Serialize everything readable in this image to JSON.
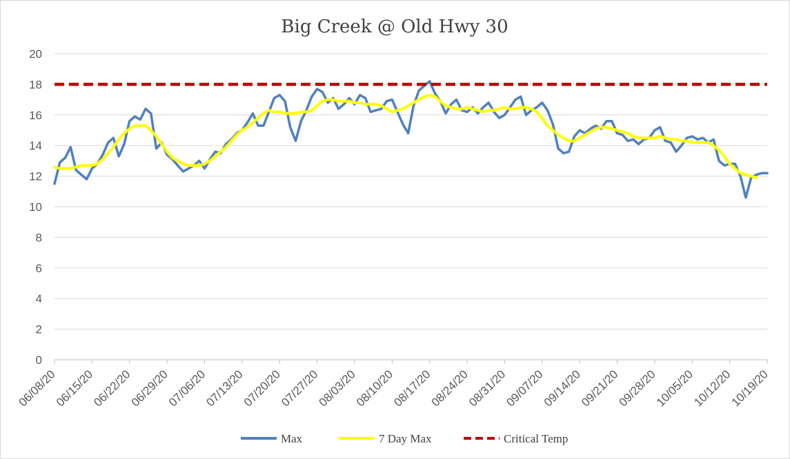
{
  "chart_data": {
    "type": "line",
    "title": "Big Creek @ Old Hwy 30",
    "ylim": [
      0,
      20
    ],
    "yticks": [
      0,
      2,
      4,
      6,
      8,
      10,
      12,
      14,
      16,
      18,
      20
    ],
    "x_start": "06/08/20",
    "x_tick_labels": [
      "06/08/20",
      "06/15/20",
      "06/22/20",
      "06/29/20",
      "07/06/20",
      "07/13/20",
      "07/20/20",
      "07/27/20",
      "08/03/20",
      "08/10/20",
      "08/17/20",
      "08/24/20",
      "08/31/20",
      "09/07/20",
      "09/14/20",
      "09/21/20",
      "09/28/20",
      "10/05/20",
      "10/12/20",
      "10/19/20"
    ],
    "grid": "horizontal",
    "legend_position": "bottom",
    "series": [
      {
        "name": "Max",
        "color": "#4f81bd",
        "style": "solid",
        "values": [
          11.5,
          12.9,
          13.2,
          13.9,
          12.4,
          12.1,
          11.8,
          12.5,
          12.8,
          13.4,
          14.2,
          14.5,
          13.3,
          14.1,
          15.6,
          15.9,
          15.7,
          16.4,
          16.1,
          13.8,
          14.2,
          13.4,
          13.1,
          12.7,
          12.3,
          12.5,
          12.7,
          13.0,
          12.5,
          13.1,
          13.6,
          13.5,
          14.1,
          14.4,
          14.8,
          15.0,
          15.5,
          16.1,
          15.3,
          15.3,
          16.2,
          17.1,
          17.3,
          16.9,
          15.2,
          14.3,
          15.6,
          16.3,
          17.2,
          17.7,
          17.5,
          16.8,
          17.1,
          16.4,
          16.7,
          17.1,
          16.7,
          17.3,
          17.1,
          16.2,
          16.3,
          16.4,
          16.9,
          17.0,
          16.2,
          15.4,
          14.8,
          16.6,
          17.6,
          17.9,
          18.2,
          17.4,
          16.9,
          16.1,
          16.7,
          17.0,
          16.3,
          16.2,
          16.5,
          16.1,
          16.5,
          16.8,
          16.2,
          15.8,
          16.0,
          16.5,
          17.0,
          17.2,
          16.0,
          16.3,
          16.5,
          16.8,
          16.3,
          15.4,
          13.8,
          13.5,
          13.6,
          14.6,
          15.0,
          14.8,
          15.1,
          15.3,
          15.1,
          15.6,
          15.6,
          14.8,
          14.7,
          14.3,
          14.4,
          14.1,
          14.4,
          14.5,
          15.0,
          15.2,
          14.3,
          14.2,
          13.6,
          14.0,
          14.5,
          14.6,
          14.4,
          14.5,
          14.2,
          14.4,
          13.0,
          12.7,
          12.8,
          12.8,
          12.0,
          10.6,
          11.9,
          12.1,
          12.2,
          12.2
        ]
      },
      {
        "name": "7 Day Max",
        "color": "#ffff00",
        "style": "solid",
        "values": [
          12.6,
          12.5,
          12.5,
          12.5,
          12.6,
          12.7,
          12.7,
          12.7,
          12.8,
          13.1,
          13.5,
          13.9,
          14.4,
          14.8,
          15.1,
          15.3,
          15.3,
          15.3,
          15.0,
          14.6,
          14.1,
          13.6,
          13.2,
          13.0,
          12.8,
          12.7,
          12.7,
          12.7,
          12.8,
          13.0,
          13.3,
          13.6,
          13.9,
          14.3,
          14.7,
          15.0,
          15.2,
          15.5,
          15.8,
          16.1,
          16.3,
          16.2,
          16.2,
          16.1,
          16.1,
          16.1,
          16.2,
          16.2,
          16.3,
          16.6,
          16.9,
          17.0,
          17.0,
          16.9,
          16.9,
          16.9,
          16.8,
          16.8,
          16.7,
          16.7,
          16.7,
          16.6,
          16.4,
          16.2,
          16.3,
          16.4,
          16.6,
          16.8,
          17.0,
          17.2,
          17.3,
          17.2,
          16.9,
          16.6,
          16.5,
          16.4,
          16.4,
          16.5,
          16.4,
          16.3,
          16.2,
          16.3,
          16.3,
          16.4,
          16.5,
          16.4,
          16.4,
          16.5,
          16.5,
          16.4,
          16.2,
          15.8,
          15.3,
          15.0,
          14.7,
          14.5,
          14.3,
          14.3,
          14.5,
          14.7,
          14.9,
          15.1,
          15.2,
          15.2,
          15.1,
          15.0,
          14.9,
          14.8,
          14.6,
          14.5,
          14.5,
          14.5,
          14.5,
          14.6,
          14.5,
          14.4,
          14.4,
          14.3,
          14.3,
          14.2,
          14.2,
          14.2,
          14.2,
          14.0,
          13.7,
          13.3,
          12.8,
          12.5,
          12.2,
          12.1,
          12.0,
          11.9
        ]
      },
      {
        "name": "Critical Temp",
        "color": "#c00000",
        "style": "dashed",
        "constant": 18
      }
    ]
  }
}
